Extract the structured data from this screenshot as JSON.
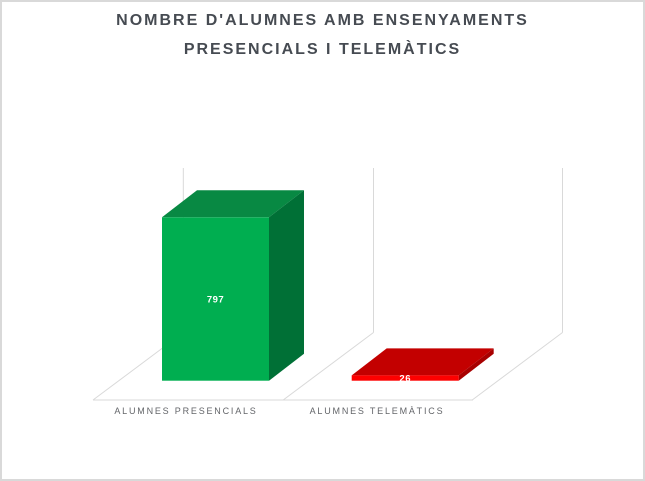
{
  "window": {
    "background": "#FFFFFF",
    "border_color": "#D9D9D9"
  },
  "chart": {
    "title_line1": "NOMBRE D'ALUMNES AMB ENSENYAMENTS",
    "title_line2": "PRESENCIALS I TELEMÀTICS",
    "title_color": "#464B52"
  },
  "chart_data": {
    "type": "bar",
    "projection": "3d",
    "title": "NOMBRE D'ALUMNES AMB ENSENYAMENTS PRESENCIALS I TELEMÀTICS",
    "categories": [
      "ALUMNES PRESENCIALS",
      "ALUMNES TELEMÀTICS"
    ],
    "values": [
      797,
      26
    ],
    "data_labels": [
      "797",
      "26"
    ],
    "xlabel": "",
    "ylabel": "",
    "value_axis_visible": false,
    "ylim": [
      0,
      1040
    ],
    "legend": "none",
    "gridlines": "category separators on back wall and floor only",
    "bar_colors": [
      {
        "front": "#00AE50",
        "top": "#088943",
        "side": "#007036"
      },
      {
        "front": "#FE0000",
        "top": "#C30000",
        "side": "#A80000"
      }
    ],
    "label_color": "#FFFFFF",
    "wall_line_color": "#D9D9D9",
    "category_label_color": "#636569"
  }
}
